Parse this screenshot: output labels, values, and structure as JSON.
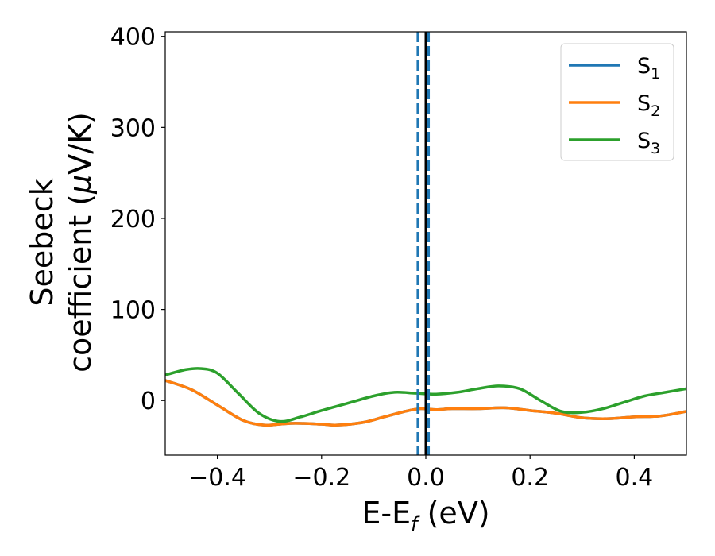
{
  "chart_data": {
    "type": "line",
    "xlabel": {
      "base": "E-E",
      "sub": "f",
      "tail": " (eV)"
    },
    "ylabel": {
      "line1": "Seebeck",
      "line2_pre": "coefficient  (",
      "mu": "μ",
      "line2_post": "V/K)"
    },
    "xlim": [
      -0.5,
      0.5
    ],
    "ylim": [
      -60,
      405
    ],
    "xticks": [
      -0.4,
      -0.2,
      0.0,
      0.2,
      0.4
    ],
    "xtick_labels": [
      "−0.4",
      "−0.2",
      "0.0",
      "0.2",
      "0.4"
    ],
    "yticks": [
      0,
      100,
      200,
      300,
      400
    ],
    "ytick_labels": [
      "0",
      "100",
      "200",
      "300",
      "400"
    ],
    "grid": false,
    "legend_position": "top-right",
    "vlines": [
      {
        "x": 0.0,
        "color": "#000000",
        "style": "solid"
      },
      {
        "x": -0.015,
        "color": "#1f77b4",
        "style": "dashed"
      },
      {
        "x": 0.005,
        "color": "#1f77b4",
        "style": "dashed"
      }
    ],
    "series": [
      {
        "name": "S",
        "sub": "1",
        "color": "#1f77b4",
        "x": [
          -0.5,
          -0.45,
          -0.4,
          -0.35,
          -0.31,
          -0.28,
          -0.25,
          -0.2,
          -0.17,
          -0.12,
          -0.08,
          -0.04,
          -0.01,
          0.02,
          0.05,
          0.1,
          0.15,
          0.2,
          0.25,
          0.3,
          0.35,
          0.4,
          0.45,
          0.5
        ],
        "y": [
          22,
          12,
          -5,
          -22,
          -27,
          -26,
          -25,
          -26,
          -27,
          -24,
          -18,
          -12,
          -9,
          -10,
          -9,
          -9,
          -8,
          -11,
          -14,
          -19,
          -20,
          -18,
          -17,
          -12
        ]
      },
      {
        "name": "S",
        "sub": "2",
        "color": "#ff7f0e",
        "x": [
          -0.5,
          -0.45,
          -0.4,
          -0.35,
          -0.31,
          -0.28,
          -0.25,
          -0.2,
          -0.17,
          -0.12,
          -0.08,
          -0.04,
          -0.01,
          0.02,
          0.05,
          0.1,
          0.15,
          0.2,
          0.25,
          0.3,
          0.35,
          0.4,
          0.45,
          0.5
        ],
        "y": [
          22,
          12,
          -5,
          -22,
          -27,
          -26,
          -25,
          -26,
          -27,
          -24,
          -18,
          -12,
          -9,
          -10,
          -9,
          -9,
          -8,
          -11,
          -14,
          -19,
          -20,
          -18,
          -17,
          -12
        ]
      },
      {
        "name": "S",
        "sub": "3",
        "color": "#2ca02c",
        "x": [
          -0.5,
          -0.46,
          -0.43,
          -0.4,
          -0.36,
          -0.32,
          -0.28,
          -0.24,
          -0.2,
          -0.15,
          -0.1,
          -0.06,
          -0.02,
          0.02,
          0.06,
          0.1,
          0.14,
          0.18,
          0.22,
          0.26,
          0.3,
          0.34,
          0.38,
          0.42,
          0.46,
          0.5
        ],
        "y": [
          28,
          34,
          35,
          30,
          8,
          -14,
          -23,
          -18,
          -11,
          -3,
          5,
          9,
          8,
          7,
          9,
          13,
          16,
          13,
          0,
          -12,
          -13,
          -9,
          -2,
          5,
          9,
          13
        ]
      }
    ]
  }
}
